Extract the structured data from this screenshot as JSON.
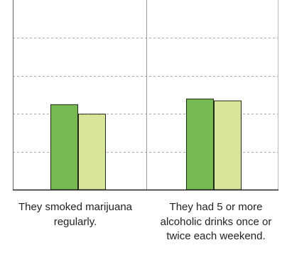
{
  "chart_data": {
    "type": "bar",
    "categories": [
      "They smoked marijuana regularly.",
      "They had 5 or more alcoholic drinks once or twice each weekend."
    ],
    "series": [
      {
        "values": [
          45,
          48
        ],
        "color": "#76b852"
      },
      {
        "values": [
          40,
          47
        ],
        "color": "#d8e59a"
      }
    ],
    "ylim": [
      0,
      100
    ],
    "gridlines": [
      20,
      40,
      60,
      80
    ],
    "grid": true,
    "legend": "none"
  }
}
